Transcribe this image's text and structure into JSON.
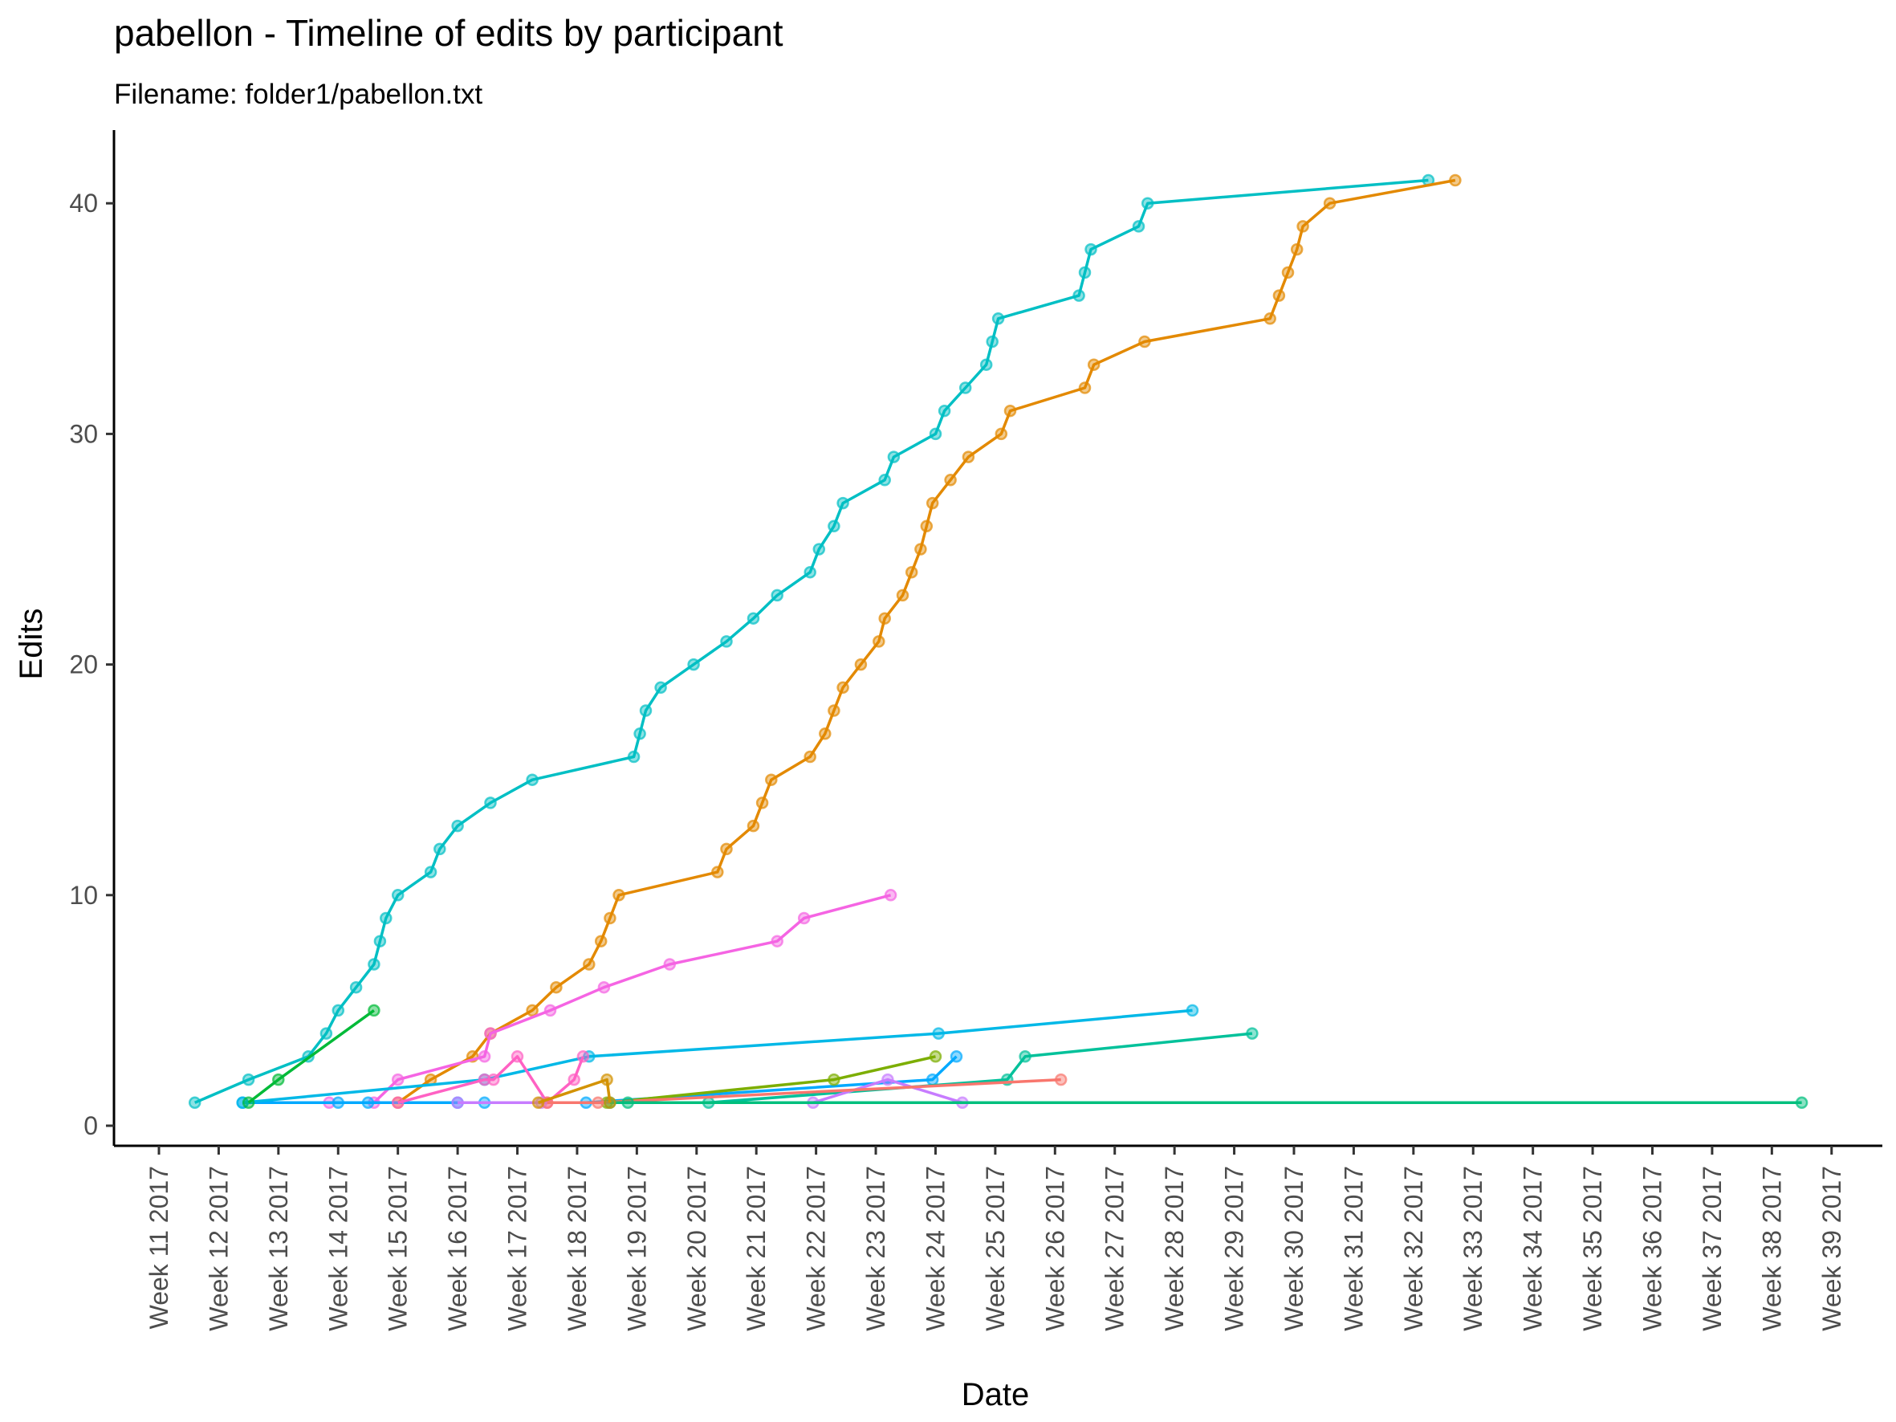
{
  "chart_data": {
    "type": "line",
    "title": "pabellon - Timeline of edits by participant",
    "subtitle": "Filename: folder1/pabellon.txt",
    "xlabel": "Date",
    "ylabel": "Edits",
    "x_tick_labels": [
      "Week 11 2017",
      "Week 12 2017",
      "Week 13 2017",
      "Week 14 2017",
      "Week 15 2017",
      "Week 16 2017",
      "Week 17 2017",
      "Week 18 2017",
      "Week 19 2017",
      "Week 20 2017",
      "Week 21 2017",
      "Week 22 2017",
      "Week 23 2017",
      "Week 24 2017",
      "Week 25 2017",
      "Week 26 2017",
      "Week 27 2017",
      "Week 28 2017",
      "Week 29 2017",
      "Week 30 2017",
      "Week 31 2017",
      "Week 32 2017",
      "Week 33 2017",
      "Week 34 2017",
      "Week 35 2017",
      "Week 36 2017",
      "Week 37 2017",
      "Week 38 2017",
      "Week 39 2017"
    ],
    "x_unit": "ISO week of 2017",
    "xlim": [
      11,
      39
    ],
    "y_ticks": [
      0,
      10,
      20,
      30,
      40
    ],
    "ylim": [
      0,
      43
    ],
    "grid": false,
    "legend": "none",
    "series": [
      {
        "color": "#00BFC4",
        "points": [
          [
            11.6,
            1
          ],
          [
            12.5,
            2
          ],
          [
            13.5,
            3
          ],
          [
            13.8,
            4
          ],
          [
            14.0,
            5
          ],
          [
            14.3,
            6
          ],
          [
            14.6,
            7
          ],
          [
            14.7,
            8
          ],
          [
            14.8,
            9
          ],
          [
            15.0,
            10
          ],
          [
            15.55,
            11
          ],
          [
            15.7,
            12
          ],
          [
            16.0,
            13
          ],
          [
            16.55,
            14
          ],
          [
            17.25,
            15
          ],
          [
            18.95,
            16
          ],
          [
            19.05,
            17
          ],
          [
            19.15,
            18
          ],
          [
            19.4,
            19
          ],
          [
            19.95,
            20
          ],
          [
            20.5,
            21
          ],
          [
            20.95,
            22
          ],
          [
            21.35,
            23
          ],
          [
            21.9,
            24
          ],
          [
            22.05,
            25
          ],
          [
            22.3,
            26
          ],
          [
            22.45,
            27
          ],
          [
            23.15,
            28
          ],
          [
            23.3,
            29
          ],
          [
            24.0,
            30
          ],
          [
            24.15,
            31
          ],
          [
            24.5,
            32
          ],
          [
            24.85,
            33
          ],
          [
            24.95,
            34
          ],
          [
            25.05,
            35
          ],
          [
            26.4,
            36
          ],
          [
            26.5,
            37
          ],
          [
            26.6,
            38
          ],
          [
            27.4,
            39
          ],
          [
            27.55,
            40
          ],
          [
            32.25,
            41
          ]
        ]
      },
      {
        "color": "#E38900",
        "points": [
          [
            15.0,
            1
          ],
          [
            15.55,
            2
          ],
          [
            16.25,
            3
          ],
          [
            16.55,
            4
          ],
          [
            17.25,
            5
          ],
          [
            17.65,
            6
          ],
          [
            18.2,
            7
          ],
          [
            18.4,
            8
          ],
          [
            18.55,
            9
          ],
          [
            18.7,
            10
          ],
          [
            20.35,
            11
          ],
          [
            20.5,
            12
          ],
          [
            20.95,
            13
          ],
          [
            21.1,
            14
          ],
          [
            21.25,
            15
          ],
          [
            21.9,
            16
          ],
          [
            22.15,
            17
          ],
          [
            22.3,
            18
          ],
          [
            22.45,
            19
          ],
          [
            22.75,
            20
          ],
          [
            23.05,
            21
          ],
          [
            23.15,
            22
          ],
          [
            23.45,
            23
          ],
          [
            23.6,
            24
          ],
          [
            23.75,
            25
          ],
          [
            23.85,
            26
          ],
          [
            23.95,
            27
          ],
          [
            24.25,
            28
          ],
          [
            24.55,
            29
          ],
          [
            25.1,
            30
          ],
          [
            25.25,
            31
          ],
          [
            26.5,
            32
          ],
          [
            26.65,
            33
          ],
          [
            27.5,
            34
          ],
          [
            29.6,
            35
          ],
          [
            29.75,
            36
          ],
          [
            29.9,
            37
          ],
          [
            30.05,
            38
          ],
          [
            30.15,
            39
          ],
          [
            30.6,
            40
          ],
          [
            32.7,
            41
          ]
        ]
      },
      {
        "color": "#F564E3",
        "points": [
          [
            13.85,
            1
          ],
          [
            14.6,
            1
          ],
          [
            15.0,
            2
          ],
          [
            16.45,
            3
          ],
          [
            16.55,
            4
          ],
          [
            17.55,
            5
          ],
          [
            18.45,
            6
          ],
          [
            19.55,
            7
          ],
          [
            21.35,
            8
          ],
          [
            21.8,
            9
          ],
          [
            23.25,
            10
          ]
        ]
      },
      {
        "color": "#00A9FF",
        "points": [
          [
            12.4,
            1
          ],
          [
            14.0,
            1
          ],
          [
            14.5,
            1
          ],
          [
            16.0,
            1
          ],
          [
            16.45,
            1
          ],
          [
            18.15,
            1
          ],
          [
            23.95,
            2
          ],
          [
            24.35,
            3
          ]
        ]
      },
      {
        "color": "#00B8E7",
        "points": [
          [
            12.4,
            1
          ],
          [
            16.45,
            2
          ],
          [
            18.2,
            3
          ],
          [
            24.05,
            4
          ],
          [
            28.3,
            5
          ]
        ]
      },
      {
        "color": "#00C19A",
        "points": [
          [
            20.2,
            1
          ],
          [
            25.2,
            2
          ],
          [
            25.5,
            3
          ],
          [
            29.3,
            4
          ]
        ]
      },
      {
        "color": "#00BA38",
        "points": [
          [
            12.5,
            1
          ],
          [
            13.0,
            2
          ],
          [
            14.6,
            5
          ]
        ]
      },
      {
        "color": "#FF61C3",
        "points": [
          [
            15.0,
            1
          ],
          [
            16.45,
            2
          ],
          [
            16.6,
            2
          ],
          [
            17.0,
            3
          ],
          [
            17.5,
            1
          ],
          [
            17.95,
            2
          ],
          [
            18.1,
            3
          ]
        ]
      },
      {
        "color": "#7CAE00",
        "points": [
          [
            18.5,
            1
          ],
          [
            22.3,
            2
          ],
          [
            24.0,
            3
          ]
        ]
      },
      {
        "color": "#C77CFF",
        "points": [
          [
            16.0,
            1
          ],
          [
            17.4,
            1
          ],
          [
            21.95,
            1
          ],
          [
            23.2,
            2
          ],
          [
            24.45,
            1
          ]
        ]
      },
      {
        "color": "#F8766D",
        "points": [
          [
            17.5,
            1
          ],
          [
            18.35,
            1
          ],
          [
            26.1,
            2
          ]
        ]
      },
      {
        "color": "#00BF7D",
        "points": [
          [
            18.55,
            1
          ],
          [
            18.85,
            1
          ],
          [
            38.5,
            1
          ]
        ]
      },
      {
        "color": "#D39200",
        "points": [
          [
            17.35,
            1
          ],
          [
            18.55,
            1
          ],
          [
            18.5,
            2
          ]
        ]
      }
    ]
  }
}
